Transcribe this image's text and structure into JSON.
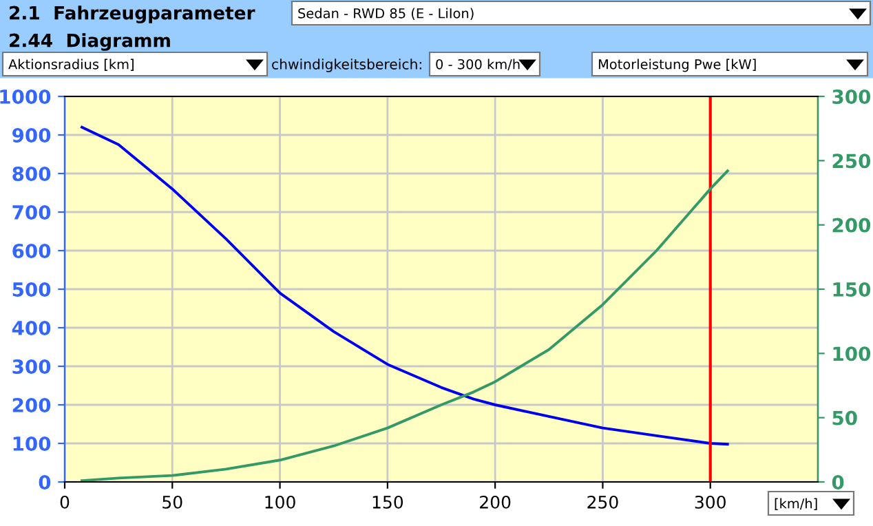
{
  "chart_data": {
    "type": "line",
    "x": [
      8,
      25,
      50,
      75,
      100,
      125,
      150,
      175,
      190,
      200,
      225,
      250,
      275,
      300,
      308
    ],
    "series": [
      {
        "color": "#0000ee",
        "values": [
          920,
          875,
          760,
          630,
          490,
          390,
          305,
          245,
          215,
          200,
          170,
          140,
          120,
          100,
          98
        ]
      },
      {
        "color": "#339966",
        "axis": "y2",
        "values": [
          1,
          3,
          5,
          10,
          17,
          28,
          42,
          60,
          70,
          78,
          103,
          138,
          180,
          228,
          242
        ]
      }
    ],
    "xlim": [
      0,
      350
    ],
    "xticks": [
      0,
      50,
      100,
      150,
      200,
      250,
      300
    ],
    "ylim": [
      0,
      1000
    ],
    "yticks": [
      0,
      100,
      200,
      300,
      400,
      500,
      600,
      700,
      800,
      900,
      1000
    ],
    "y2lim": [
      0,
      300
    ],
    "y2ticks": [
      0,
      50,
      100,
      150,
      200,
      250,
      300
    ],
    "grid": true,
    "marker": "none",
    "line_style": "solid",
    "ref_lines": [
      {
        "axis": "x",
        "value": 300,
        "color": "#ff0000"
      }
    ],
    "annotations": [
      "2.1  Fahrzeugparameter",
      "Sedan - RWD 85 (E - LiIon)",
      "2.44  Diagramm",
      "Aktionsradius [km]",
      "chwindigkeitsbereich:",
      "0 - 300 km/h",
      "Motorleistung Pwe [kW]",
      "[km/h]"
    ]
  }
}
